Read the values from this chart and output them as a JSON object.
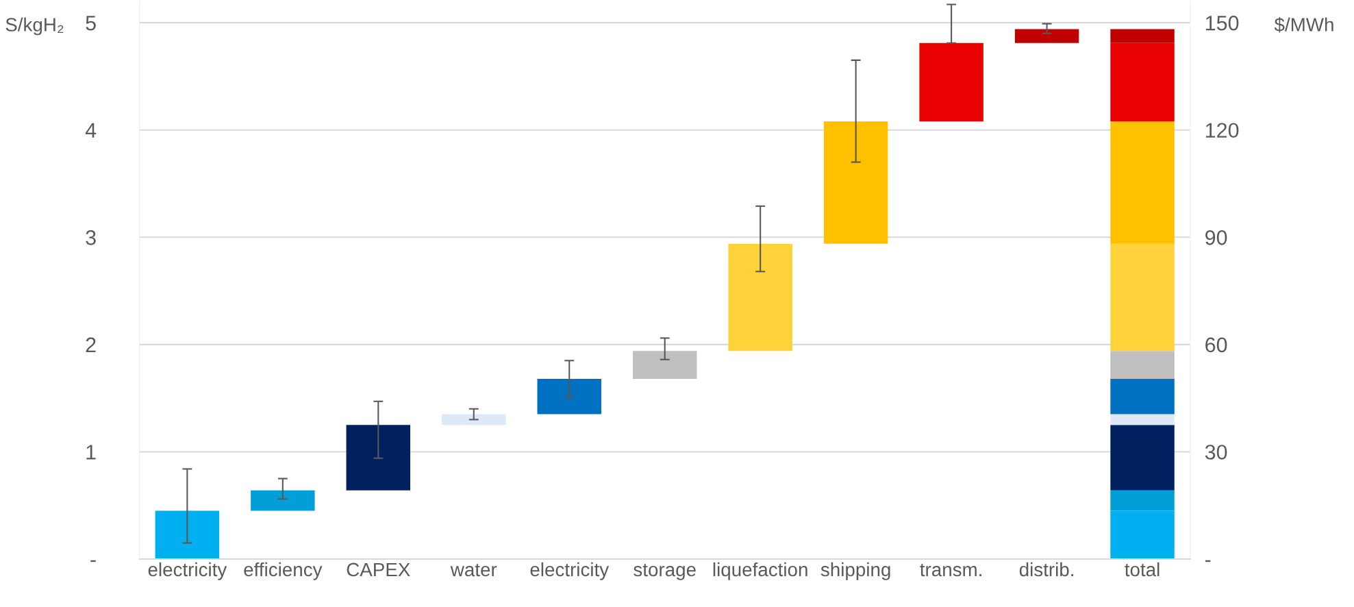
{
  "chart_data": {
    "type": "bar",
    "categories": [
      "electricity",
      "efficiency",
      "CAPEX",
      "water",
      "electricity",
      "storage",
      "liquefaction",
      "shipping",
      "transm.",
      "distrib.",
      "total"
    ],
    "series": [
      {
        "color": "#00b0f0",
        "values": [
          0.45,
          null,
          null,
          null,
          null,
          null,
          null,
          null,
          null,
          null,
          0.45
        ],
        "base": [
          0,
          null,
          null,
          null,
          null,
          null,
          null,
          null,
          null,
          null,
          0
        ],
        "errors": [
          [
            0.15,
            0.84
          ],
          null,
          null,
          null,
          null,
          null,
          null,
          null,
          null,
          null,
          null
        ]
      },
      {
        "color": "#009fd8",
        "values": [
          null,
          0.19,
          null,
          null,
          null,
          null,
          null,
          null,
          null,
          null,
          0.19
        ],
        "base": [
          null,
          0.45,
          null,
          null,
          null,
          null,
          null,
          null,
          null,
          null,
          0.45
        ],
        "errors": [
          null,
          [
            0.56,
            0.75
          ],
          null,
          null,
          null,
          null,
          null,
          null,
          null,
          null,
          null
        ]
      },
      {
        "color": "#002060",
        "values": [
          null,
          null,
          0.61,
          null,
          null,
          null,
          null,
          null,
          null,
          null,
          0.61
        ],
        "base": [
          null,
          null,
          0.64,
          null,
          null,
          null,
          null,
          null,
          null,
          null,
          0.64
        ],
        "errors": [
          null,
          null,
          [
            0.94,
            1.47
          ],
          null,
          null,
          null,
          null,
          null,
          null,
          null,
          null
        ]
      },
      {
        "color": "#dde9f6",
        "values": [
          null,
          null,
          null,
          0.1,
          null,
          null,
          null,
          null,
          null,
          null,
          0.1
        ],
        "base": [
          null,
          null,
          null,
          1.25,
          null,
          null,
          null,
          null,
          null,
          null,
          1.25
        ],
        "errors": [
          null,
          null,
          null,
          [
            1.3,
            1.4
          ],
          null,
          null,
          null,
          null,
          null,
          null,
          null
        ]
      },
      {
        "color": "#0070c0",
        "values": [
          null,
          null,
          null,
          null,
          0.33,
          null,
          null,
          null,
          null,
          null,
          0.33
        ],
        "base": [
          null,
          null,
          null,
          null,
          1.35,
          null,
          null,
          null,
          null,
          null,
          1.35
        ],
        "errors": [
          null,
          null,
          null,
          null,
          [
            1.51,
            1.85
          ],
          null,
          null,
          null,
          null,
          null,
          null
        ]
      },
      {
        "color": "#bfbfbf",
        "values": [
          null,
          null,
          null,
          null,
          null,
          0.26,
          null,
          null,
          null,
          null,
          0.26
        ],
        "base": [
          null,
          null,
          null,
          null,
          null,
          1.68,
          null,
          null,
          null,
          null,
          1.68
        ],
        "errors": [
          null,
          null,
          null,
          null,
          null,
          [
            1.86,
            2.06
          ],
          null,
          null,
          null,
          null,
          null
        ]
      },
      {
        "color": "#ffd23a",
        "values": [
          null,
          null,
          null,
          null,
          null,
          null,
          1.0,
          null,
          null,
          null,
          1.0
        ],
        "base": [
          null,
          null,
          null,
          null,
          null,
          null,
          1.94,
          null,
          null,
          null,
          1.94
        ],
        "errors": [
          null,
          null,
          null,
          null,
          null,
          null,
          [
            2.68,
            3.29
          ],
          null,
          null,
          null,
          null
        ]
      },
      {
        "color": "#ffc000",
        "values": [
          null,
          null,
          null,
          null,
          null,
          null,
          null,
          1.14,
          null,
          null,
          1.14
        ],
        "base": [
          null,
          null,
          null,
          null,
          null,
          null,
          null,
          2.94,
          null,
          null,
          2.94
        ],
        "errors": [
          null,
          null,
          null,
          null,
          null,
          null,
          null,
          [
            3.7,
            4.65
          ],
          null,
          null,
          null
        ]
      },
      {
        "color": "#e90000",
        "values": [
          null,
          null,
          null,
          null,
          null,
          null,
          null,
          null,
          0.73,
          null,
          0.73
        ],
        "base": [
          null,
          null,
          null,
          null,
          null,
          null,
          null,
          null,
          4.08,
          null,
          4.08
        ],
        "errors": [
          null,
          null,
          null,
          null,
          null,
          null,
          null,
          null,
          [
            4.81,
            5.17
          ],
          null,
          null
        ]
      },
      {
        "color": "#c00000",
        "values": [
          null,
          null,
          null,
          null,
          null,
          null,
          null,
          null,
          null,
          0.13,
          0.13
        ],
        "base": [
          null,
          null,
          null,
          null,
          null,
          null,
          null,
          null,
          null,
          4.81,
          4.81
        ],
        "errors": [
          null,
          null,
          null,
          null,
          null,
          null,
          null,
          null,
          null,
          [
            4.9,
            4.99
          ],
          null
        ]
      }
    ],
    "ylabel": "S/kgH₂",
    "y2label": "$/MWh",
    "ylim": [
      0,
      5.2
    ],
    "yticks": [
      {
        "value": 0,
        "label": "-"
      },
      1,
      2,
      3,
      4,
      5
    ],
    "y2lim": [
      0,
      156
    ],
    "y2ticks": [
      {
        "value": 0,
        "label": "-"
      },
      30,
      60,
      90,
      120,
      150
    ],
    "grid": "y",
    "legend": false
  }
}
